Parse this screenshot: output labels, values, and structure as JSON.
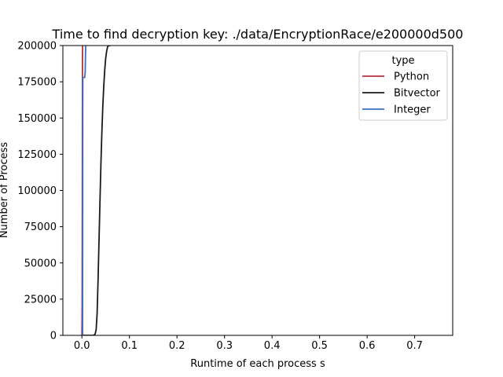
{
  "chart_data": {
    "type": "line",
    "title": "Time to find decryption key: ./data/EncryptionRace/e200000d500",
    "xlabel": "Runtime of each process s",
    "ylabel": "Number of Process",
    "xlim": [
      -0.04,
      0.78
    ],
    "ylim": [
      0,
      200000
    ],
    "x_ticks": [
      0.0,
      0.1,
      0.2,
      0.3,
      0.4,
      0.5,
      0.6,
      0.7
    ],
    "x_tick_labels": [
      "0.0",
      "0.1",
      "0.2",
      "0.3",
      "0.4",
      "0.5",
      "0.6",
      "0.7"
    ],
    "y_ticks": [
      0,
      25000,
      50000,
      75000,
      100000,
      125000,
      150000,
      175000,
      200000
    ],
    "y_tick_labels": [
      "0",
      "25000",
      "50000",
      "75000",
      "100000",
      "125000",
      "150000",
      "175000",
      "200000"
    ],
    "grid": false,
    "legend": {
      "title": "type",
      "placement": "top-right"
    },
    "series": [
      {
        "name": "Python",
        "color": "#b5303f",
        "x": [
          0.0,
          0.0005,
          0.0008,
          0.001,
          0.0012,
          0.0015
        ],
        "y": [
          0,
          20000,
          80000,
          140000,
          190000,
          200000
        ]
      },
      {
        "name": "Bitvector",
        "color": "#1a1a1a",
        "x": [
          0.0,
          0.025,
          0.028,
          0.03,
          0.032,
          0.034,
          0.036,
          0.038,
          0.04,
          0.042,
          0.044,
          0.046,
          0.048,
          0.05,
          0.052,
          0.054,
          0.056,
          0.06
        ],
        "y": [
          0,
          0,
          1000,
          4000,
          15000,
          38000,
          65000,
          92000,
          118000,
          140000,
          158000,
          172000,
          183000,
          191000,
          196000,
          199000,
          200000,
          200000
        ]
      },
      {
        "name": "Integer",
        "color": "#3e6fc4",
        "x": [
          0.0015,
          0.0018,
          0.002,
          0.006,
          0.007,
          0.0075,
          0.008
        ],
        "y": [
          0,
          150000,
          178000,
          178000,
          182000,
          192000,
          200000
        ]
      }
    ]
  }
}
